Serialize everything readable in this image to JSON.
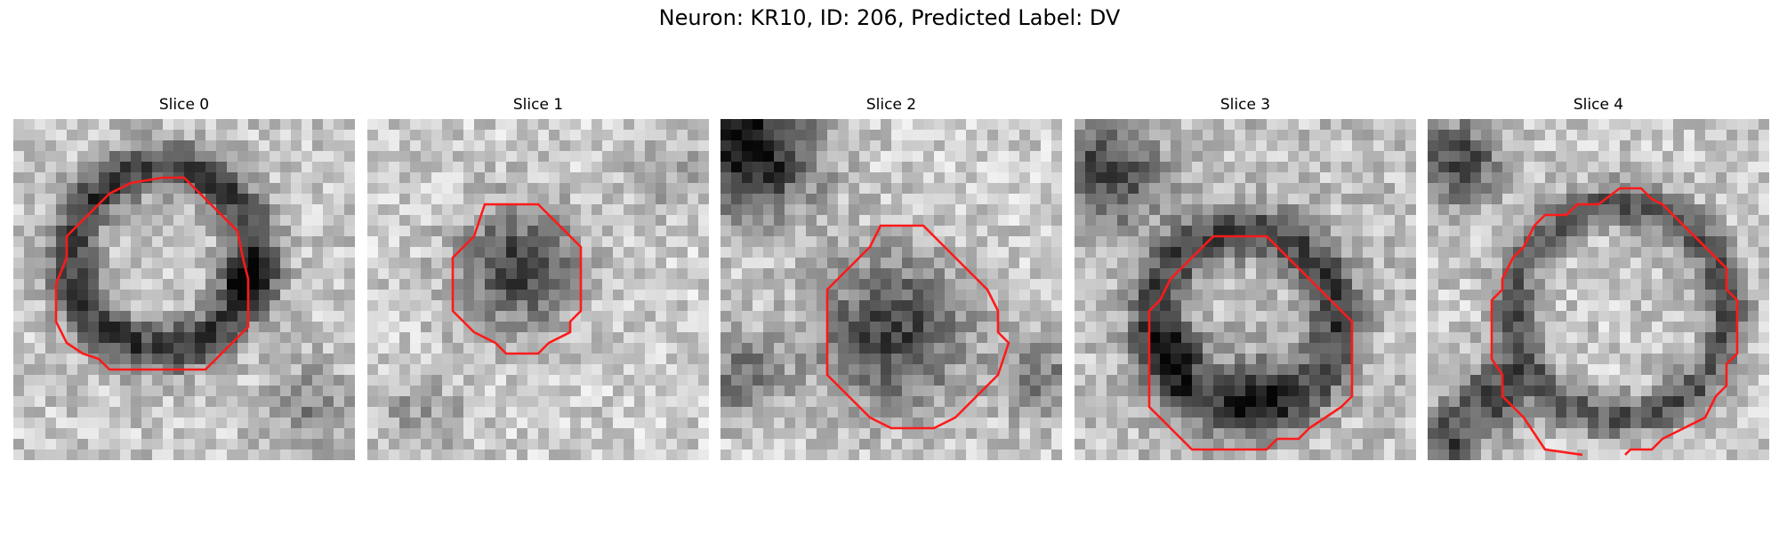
{
  "figure": {
    "title": "Neuron: KR10, ID: 206, Predicted Label: DV",
    "colors": {
      "contour": "#ff1a1a",
      "background": "#ffffff"
    }
  },
  "panels": [
    {
      "title": "Slice 0"
    },
    {
      "title": "Slice 1"
    },
    {
      "title": "Slice 2"
    },
    {
      "title": "Slice 3"
    },
    {
      "title": "Slice 4"
    }
  ]
}
